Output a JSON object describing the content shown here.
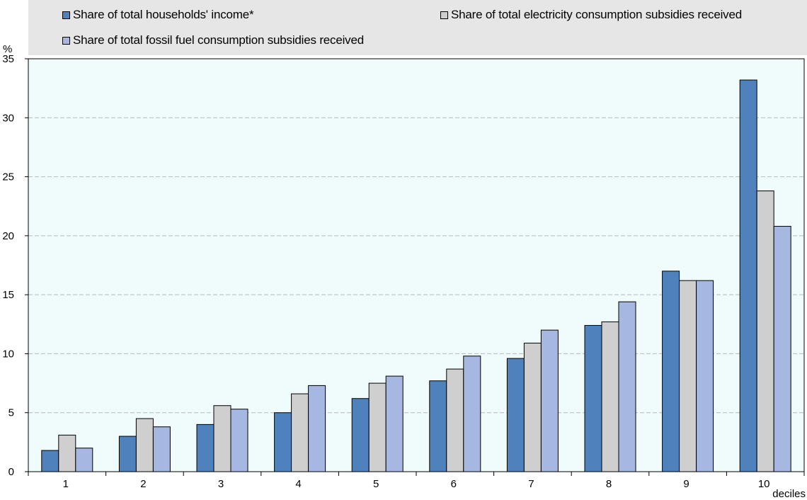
{
  "chart_data": {
    "type": "bar",
    "y_unit": "%",
    "x_unit": "deciles",
    "categories": [
      "1",
      "2",
      "3",
      "4",
      "5",
      "6",
      "7",
      "8",
      "9",
      "10"
    ],
    "ylim": [
      0,
      35
    ],
    "yticks": [
      0,
      5,
      10,
      15,
      20,
      25,
      30,
      35
    ],
    "grid": "horizontal dashed",
    "legend_position": "top",
    "background_color": "#f0fcfc",
    "series": [
      {
        "name": "Share of total households' income*",
        "color": "#4f81bd",
        "values": [
          1.8,
          3.0,
          4.0,
          5.0,
          6.2,
          7.7,
          9.6,
          12.4,
          17.0,
          33.2
        ]
      },
      {
        "name": "Share of total electricity consumption subsidies received",
        "color": "#cfcfcf",
        "values": [
          3.1,
          4.5,
          5.6,
          6.6,
          7.5,
          8.7,
          10.9,
          12.7,
          16.2,
          23.8
        ]
      },
      {
        "name": "Share of total fossil fuel consumption subsidies received",
        "color": "#a6b8e2",
        "values": [
          2.0,
          3.8,
          5.3,
          7.3,
          8.1,
          9.8,
          12.0,
          14.4,
          16.2,
          20.8
        ]
      }
    ]
  }
}
